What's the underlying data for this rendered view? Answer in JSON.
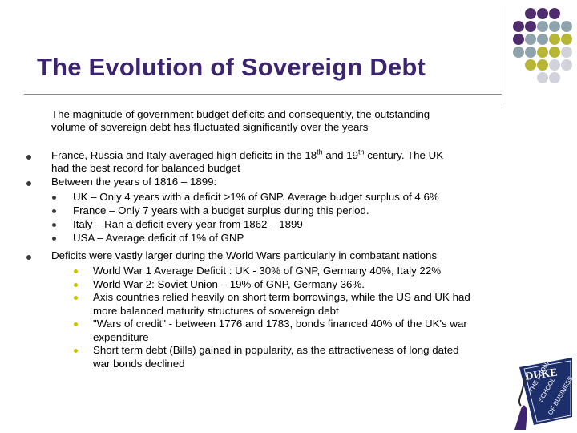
{
  "slide": {
    "title": "The Evolution of Sovereign Debt",
    "intro": [
      "The magnitude of government budget deficits and consequently, the outstanding",
      "volume of sovereign debt has fluctuated significantly over the years"
    ],
    "bullet1": {
      "line1_pre": "France, Russia and Italy averaged high deficits in the 18",
      "line1_sup1": "th",
      "line1_mid": " and 19",
      "line1_sup2": "th",
      "line1_post": " century. The UK",
      "line2": "had the best record for balanced budget"
    },
    "bullet2": "Between the years of 1816 – 1899:",
    "sub_items": [
      "UK – Only 4 years with a deficit >1% of GNP. Average budget surplus of 4.6%",
      "France – Only 7 years with a budget surplus during this period.",
      "Italy – Ran a deficit every year from 1862 – 1899",
      "USA – Average deficit of 1% of GNP"
    ],
    "bullet3": "Deficits were vastly larger during the World Wars particularly in combatant nations",
    "war_items": [
      [
        "World War 1 Average Deficit : UK - 30% of GNP, Germany 40%, Italy 22%"
      ],
      [
        "World War 2: Soviet Union – 19% of GNP, Germany 36%."
      ],
      [
        "Axis countries relied heavily on short term borrowings, while the US and UK had",
        "more balanced maturity structures of sovereign debt"
      ],
      [
        "\"Wars of credit\" - between 1776 and 1783, bonds financed 40% of the UK's war",
        "expenditure"
      ],
      [
        "Short term debt (Bills) gained in popularity, as the attractiveness of long dated",
        "war bonds declined"
      ]
    ]
  },
  "logo": {
    "word": "DUKE",
    "lines": [
      "THE FUQUA",
      "SCHOOL",
      "OF BUSINESS"
    ]
  },
  "colors": {
    "title": "#3d2470",
    "dot_purple": "#4f2d6d",
    "dot_teal": "#8ea3ab",
    "dot_olive": "#b8b636",
    "dot_light": "#d2d2dc",
    "logo_navy": "#1d2f6b"
  }
}
